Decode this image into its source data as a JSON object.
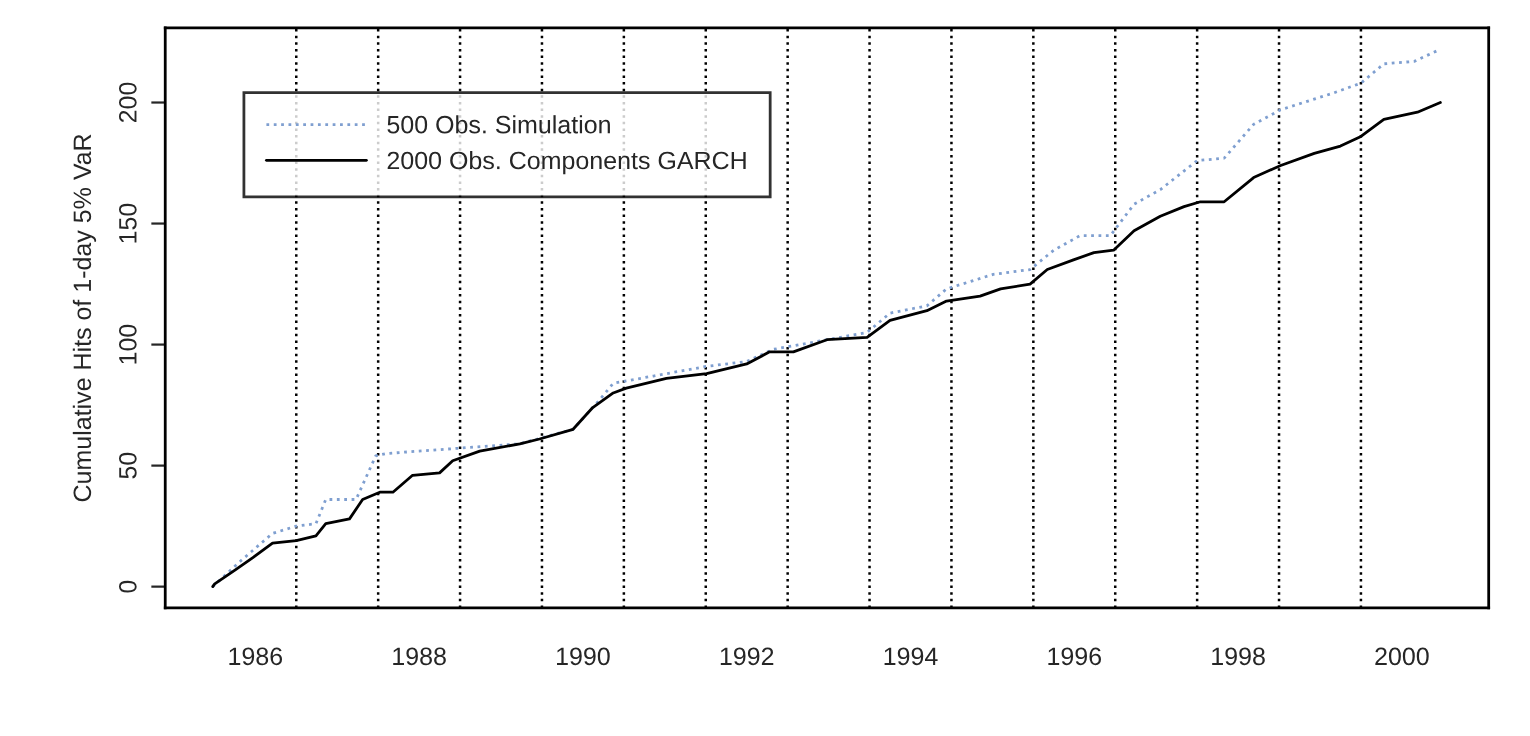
{
  "chart_data": {
    "type": "line",
    "ylabel": "Cumulative Hits of 1-day 5% VaR",
    "xlim": [
      1984.9,
      2001.06
    ],
    "xticks": [
      1986,
      1988,
      1990,
      1992,
      1994,
      1996,
      1998,
      2000
    ],
    "ylim": [
      -8.8,
      230.8
    ],
    "yticks": [
      0,
      50,
      100,
      150,
      200
    ],
    "grid": false,
    "legend": "top left",
    "series": [
      {
        "name": "500 Obs. Simulation",
        "color": "#7f9fd0",
        "line_style": "dotted",
        "x": [
          1985.48,
          1985.8,
          1986.21,
          1986.5,
          1986.74,
          1986.86,
          1987.23,
          1987.47,
          1987.6,
          1988.41,
          1989.23,
          1989.88,
          1990.2,
          1990.37,
          1990.86,
          1991.51,
          1992.0,
          1992.32,
          1992.98,
          1993.47,
          1993.75,
          1994.2,
          1994.44,
          1995.01,
          1995.46,
          1995.75,
          1996.07,
          1996.44,
          1996.73,
          1997.05,
          1997.5,
          1997.83,
          1998.19,
          1998.52,
          1999.17,
          1999.5,
          1999.78,
          2000.15,
          2000.47
        ],
        "values": [
          0,
          10,
          22,
          25,
          26,
          36,
          36,
          54,
          55,
          57,
          59,
          65,
          77,
          84,
          87,
          91,
          93,
          98,
          102,
          105,
          113,
          116,
          123,
          129,
          131,
          139,
          145,
          145,
          158,
          164,
          176,
          177,
          191,
          197,
          204,
          208,
          216,
          217,
          222
        ]
      },
      {
        "name": "2000 Obs. Components GARCH",
        "color": "#000000",
        "line_style": "solid",
        "x": [
          1985.48,
          1985.5,
          1985.76,
          1985.97,
          1986.21,
          1986.5,
          1986.74,
          1986.86,
          1987.15,
          1987.31,
          1987.52,
          1987.68,
          1987.92,
          1988.25,
          1988.41,
          1988.74,
          1989.23,
          1989.47,
          1989.88,
          1990.12,
          1990.37,
          1990.53,
          1991.02,
          1991.51,
          1992.0,
          1992.28,
          1992.57,
          1992.98,
          1993.47,
          1993.75,
          1994.2,
          1994.44,
          1994.85,
          1995.1,
          1995.46,
          1995.67,
          1995.99,
          1996.24,
          1996.48,
          1996.73,
          1997.05,
          1997.34,
          1997.54,
          1997.83,
          1998.19,
          1998.52,
          1998.93,
          1999.25,
          1999.5,
          1999.78,
          2000.19,
          2000.47
        ],
        "values": [
          0,
          1,
          7,
          12,
          18,
          19,
          21,
          26,
          28,
          36,
          39,
          39,
          46,
          47,
          52,
          56,
          59,
          61,
          65,
          74,
          80,
          82,
          86,
          88,
          92,
          97,
          97,
          102,
          103,
          110,
          114,
          118,
          120,
          123,
          125,
          131,
          135,
          138,
          139,
          147,
          153,
          157,
          159,
          159,
          169,
          174,
          179,
          182,
          186,
          193,
          196,
          200
        ]
      }
    ],
    "ref_lines": [
      {
        "axis": "x",
        "value": 1986.5,
        "color": "#000000",
        "line_style": "dotted"
      },
      {
        "axis": "x",
        "value": 1987.5,
        "color": "#000000",
        "line_style": "dotted"
      },
      {
        "axis": "x",
        "value": 1988.5,
        "color": "#000000",
        "line_style": "dotted"
      },
      {
        "axis": "x",
        "value": 1989.5,
        "color": "#000000",
        "line_style": "dotted"
      },
      {
        "axis": "x",
        "value": 1990.5,
        "color": "#000000",
        "line_style": "dotted"
      },
      {
        "axis": "x",
        "value": 1991.5,
        "color": "#000000",
        "line_style": "dotted"
      },
      {
        "axis": "x",
        "value": 1992.5,
        "color": "#000000",
        "line_style": "dotted"
      },
      {
        "axis": "x",
        "value": 1993.5,
        "color": "#000000",
        "line_style": "dotted"
      },
      {
        "axis": "x",
        "value": 1994.5,
        "color": "#000000",
        "line_style": "dotted"
      },
      {
        "axis": "x",
        "value": 1995.5,
        "color": "#000000",
        "line_style": "dotted"
      },
      {
        "axis": "x",
        "value": 1996.5,
        "color": "#000000",
        "line_style": "dotted"
      },
      {
        "axis": "x",
        "value": 1997.5,
        "color": "#000000",
        "line_style": "dotted"
      },
      {
        "axis": "x",
        "value": 1998.5,
        "color": "#000000",
        "line_style": "dotted"
      },
      {
        "axis": "x",
        "value": 1999.5,
        "color": "#000000",
        "line_style": "dotted"
      }
    ]
  }
}
